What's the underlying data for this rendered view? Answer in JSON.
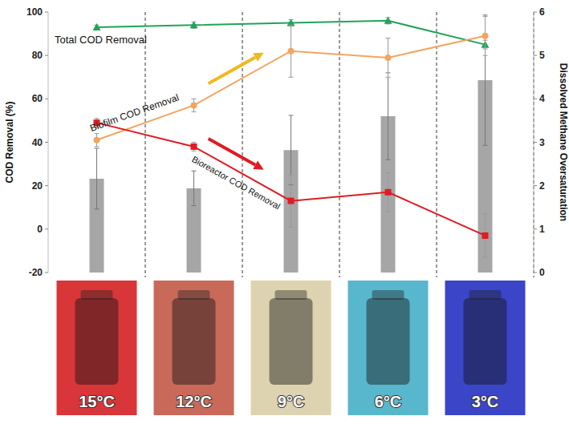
{
  "chart_data": {
    "type": "combo",
    "categories": [
      "15°C",
      "12°C",
      "9°C",
      "6°C",
      "3°C"
    ],
    "ylabel": "COD Removal (%)",
    "y2label": "Dissolved Methane Oversaturation",
    "ylim": [
      -20,
      100
    ],
    "yticks": [
      -20,
      0,
      20,
      40,
      60,
      80,
      100
    ],
    "y2lim": [
      0,
      6
    ],
    "y2ticks": [
      0,
      1,
      2,
      3,
      4,
      5,
      6
    ],
    "grid": false,
    "series": [
      {
        "type": "bar",
        "axis": "y2",
        "color": "#a6a6a6",
        "values": [
          2.16,
          1.94,
          2.82,
          3.6,
          4.43
        ],
        "errors": [
          0.7,
          0.4,
          0.8,
          1.0,
          1.5
        ]
      },
      {
        "name": "Total COD Removal",
        "type": "line",
        "color": "#21a35a",
        "marker": "triangle",
        "values": [
          93,
          94,
          95,
          96,
          85
        ],
        "errors": [
          1,
          1.5,
          1.5,
          1.5,
          2
        ]
      },
      {
        "name": "Biofilm COD Removal",
        "type": "line",
        "color": "#f4a460",
        "marker": "circle",
        "values": [
          41,
          57,
          82,
          79,
          89
        ],
        "errors": [
          3,
          3,
          12,
          9,
          9
        ]
      },
      {
        "name": "Bioreactor COD Removal",
        "type": "line",
        "color": "#e01b22",
        "marker": "square",
        "values": [
          49,
          38,
          13,
          17,
          -3
        ],
        "errors": [
          2,
          2,
          12,
          9,
          10
        ]
      }
    ]
  }
}
